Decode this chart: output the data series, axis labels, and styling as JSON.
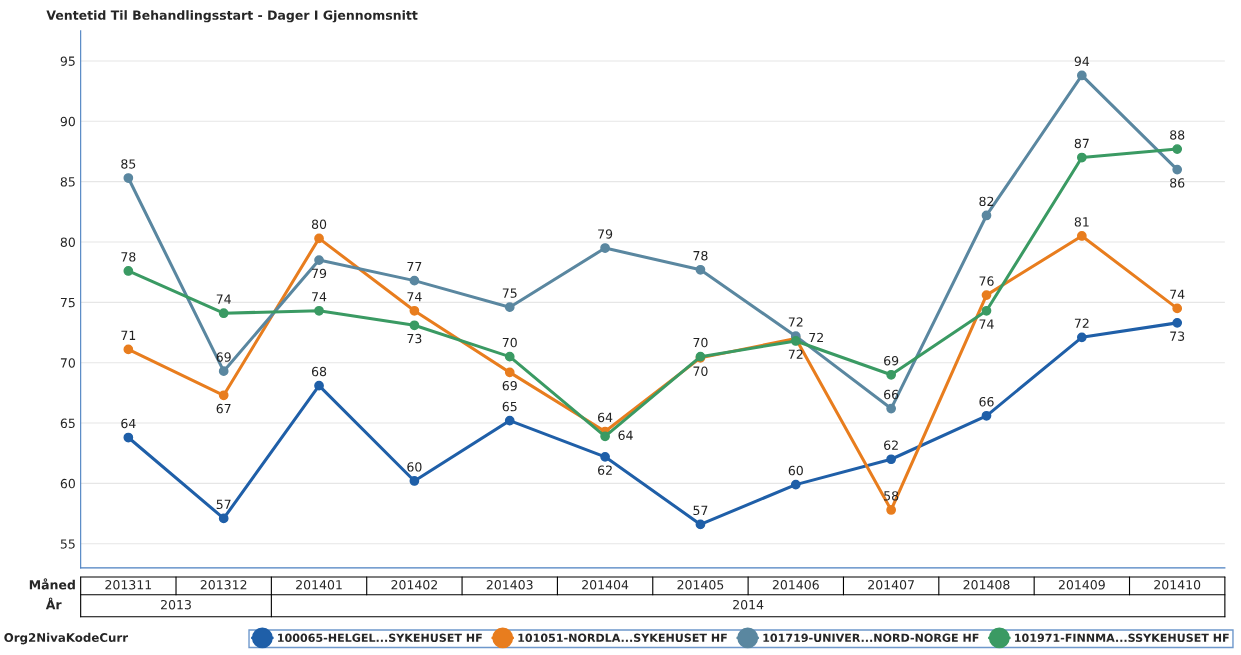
{
  "chart_data": {
    "type": "line",
    "title": "Ventetid Til Behandlingsstart - Dager I Gjennomsnitt",
    "xlabel": "Måned",
    "legend_title": "Org2NivaKodeCurr",
    "categories": [
      "201311",
      "201312",
      "201401",
      "201402",
      "201403",
      "201404",
      "201405",
      "201406",
      "201407",
      "201408",
      "201409",
      "201410"
    ],
    "annotations": [
      "År",
      "2013",
      "2014"
    ],
    "series": [
      {
        "name": "100065-HELGEL...SYKEHUSET HF",
        "color": "#1f5fa8",
        "values": [
          63.8,
          57.1,
          68.1,
          60.2,
          65.2,
          62.2,
          56.6,
          59.9,
          62.0,
          65.6,
          72.1,
          73.3
        ],
        "value_labels": [
          "64",
          "57",
          "68",
          "60",
          "65",
          "62",
          "57",
          "60",
          "62",
          "66",
          "72",
          "73"
        ]
      },
      {
        "name": "101051-NORDLA...SYKEHUSET HF",
        "color": "#e87d1e",
        "values": [
          71.1,
          67.3,
          80.3,
          74.3,
          69.2,
          64.3,
          70.4,
          72.0,
          57.8,
          75.6,
          80.5,
          74.5
        ],
        "value_labels": [
          "71",
          "67",
          "80",
          "74",
          "69",
          "64",
          "70",
          "72",
          "58",
          "76",
          "81",
          "74"
        ]
      },
      {
        "name": "101719-UNIVER...NORD-NORGE HF",
        "color": "#5a87a0",
        "values": [
          85.3,
          69.3,
          78.5,
          76.8,
          74.6,
          79.5,
          77.7,
          72.2,
          66.2,
          82.2,
          93.8,
          86.0
        ],
        "value_labels": [
          "85",
          "69",
          "79",
          "77",
          "75",
          "79",
          "78",
          "72",
          "66",
          "82",
          "94",
          "86"
        ]
      },
      {
        "name": "101971-FINNMA...SSYKEHUSET HF",
        "color": "#3a9a63",
        "values": [
          77.6,
          74.1,
          74.3,
          73.1,
          70.5,
          63.9,
          70.5,
          71.8,
          69.0,
          74.3,
          87.0,
          87.7
        ],
        "value_labels": [
          "78",
          "74",
          "74",
          "73",
          "70",
          "64",
          "70",
          "72",
          "69",
          "74",
          "87",
          "88"
        ]
      }
    ],
    "ylim": [
      53,
      97.5
    ],
    "yticks": [
      55,
      60,
      65,
      70,
      75,
      80,
      85,
      90,
      95
    ],
    "grid": "y",
    "legend": "bottom",
    "marker": "circle",
    "line_style": "solid"
  }
}
